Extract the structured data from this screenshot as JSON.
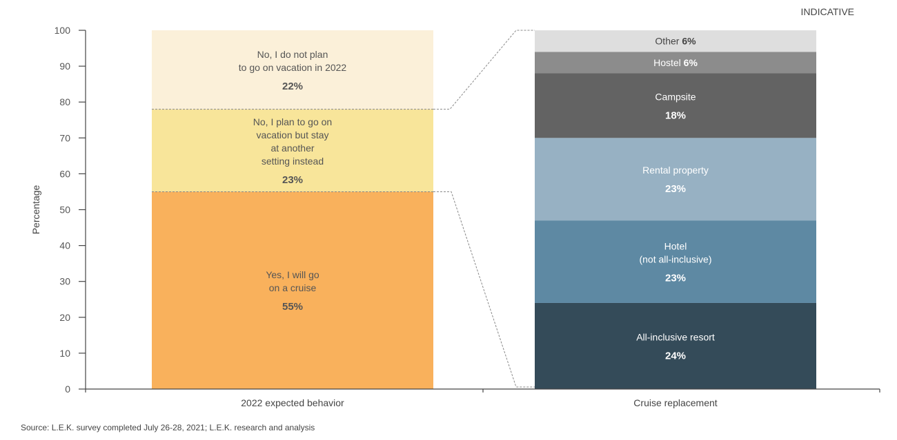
{
  "indicative_label": "INDICATIVE",
  "source": "Source: L.E.K. survey completed July 26-28, 2021; L.E.K. research and analysis",
  "chart_data": {
    "type": "bar",
    "stacked": true,
    "ylabel": "Percentage",
    "xlabel": "",
    "ylim": [
      0,
      100
    ],
    "yticks": [
      0,
      10,
      20,
      30,
      40,
      50,
      60,
      70,
      80,
      90,
      100
    ],
    "grid": false,
    "categories": [
      "2022 expected behavior",
      "Cruise replacement"
    ],
    "bars": [
      {
        "category": "2022 expected behavior",
        "segments": [
          {
            "label": [
              "Yes, I will go",
              "on a cruise"
            ],
            "value": 55,
            "value_label": "55%",
            "color": "#F9B15C",
            "text_color": "#555555"
          },
          {
            "label": [
              "No, I plan to go on",
              "vacation but stay",
              "at another",
              "setting instead"
            ],
            "value": 23,
            "value_label": "23%",
            "color": "#F8E59A",
            "text_color": "#555555"
          },
          {
            "label": [
              "No, I do not plan",
              "to go on vacation in 2022"
            ],
            "value": 22,
            "value_label": "22%",
            "color": "#FBF0D9",
            "text_color": "#555555"
          }
        ]
      },
      {
        "category": "Cruise replacement",
        "segments": [
          {
            "label": [
              "All-inclusive resort"
            ],
            "value": 24,
            "value_label": "24%",
            "color": "#344B59",
            "text_color": "#FFFFFF"
          },
          {
            "label": [
              "Hotel",
              "(not all-inclusive)"
            ],
            "value": 23,
            "value_label": "23%",
            "color": "#5E89A3",
            "text_color": "#FFFFFF"
          },
          {
            "label": [
              "Rental property"
            ],
            "value": 23,
            "value_label": "23%",
            "color": "#97B1C3",
            "text_color": "#FFFFFF"
          },
          {
            "label": [
              "Campsite"
            ],
            "value": 18,
            "value_label": "18%",
            "color": "#636363",
            "text_color": "#FFFFFF"
          },
          {
            "label": [
              "Hostel"
            ],
            "value": 6,
            "value_label": "6%",
            "color": "#8C8C8C",
            "text_color": "#FFFFFF",
            "inline": true
          },
          {
            "label": [
              "Other"
            ],
            "value": 6,
            "value_label": "6%",
            "color": "#DEDEDE",
            "text_color": "#444444",
            "inline": true
          }
        ]
      }
    ]
  }
}
